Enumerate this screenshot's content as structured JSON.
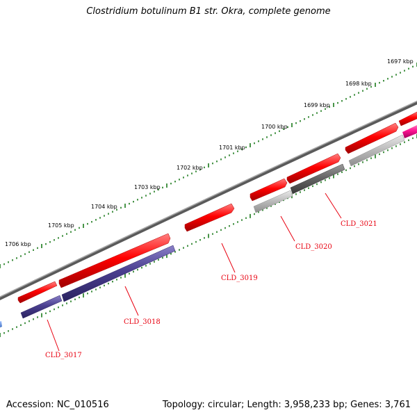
{
  "title": "Clostridium botulinum B1 str. Okra, complete genome",
  "footer": {
    "accession": "Accession: NC_010516",
    "topology": "Topology: circular; Length: 3,958,233 bp; Genes: 3,761"
  },
  "ruler": {
    "labels": [
      "1697 kbp",
      "1698 kbp",
      "1699 kbp",
      "1700 kbp",
      "1701 kbp",
      "1702 kbp",
      "1703 kbp",
      "1704 kbp",
      "1705 kbp",
      "1706 kbp"
    ]
  },
  "genes": [
    {
      "id": "CLD_3017",
      "label": "CLD_3017"
    },
    {
      "id": "CLD_3018",
      "label": "CLD_3018"
    },
    {
      "id": "CLD_3019",
      "label": "CLD_3019"
    },
    {
      "id": "CLD_3020",
      "label": "CLD_3020"
    },
    {
      "id": "CLD_3021",
      "label": "CLD_3021"
    }
  ],
  "colors": {
    "backbone": "#808080",
    "cds": "#ff0000",
    "label": "#e8000f",
    "tick": "#1a7a1a",
    "navy": "#4a3f8f",
    "gray_dark": "#6a6a6a",
    "gray_light": "#bdbdbd",
    "magenta": "#ff1493"
  }
}
